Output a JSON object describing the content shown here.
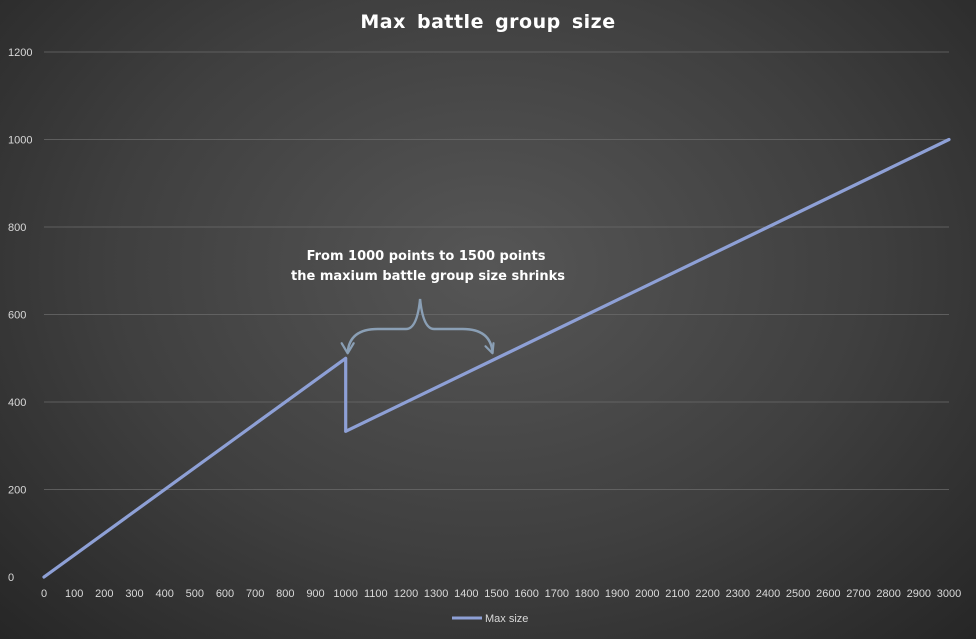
{
  "chart_data": {
    "type": "line",
    "title": "Max battle group size",
    "xlabel": "",
    "ylabel": "",
    "xlim": [
      0,
      3000
    ],
    "ylim": [
      0,
      1200
    ],
    "x_ticks": [
      0,
      100,
      200,
      300,
      400,
      500,
      600,
      700,
      800,
      900,
      1000,
      1100,
      1200,
      1300,
      1400,
      1500,
      1600,
      1700,
      1800,
      1900,
      2000,
      2100,
      2200,
      2300,
      2400,
      2500,
      2600,
      2700,
      2800,
      2900,
      3000
    ],
    "y_ticks": [
      0,
      200,
      400,
      600,
      800,
      1000,
      1200
    ],
    "grid": "horizontal",
    "legend_position": "bottom",
    "series": [
      {
        "name": "Max size",
        "color": "#8ea0d6",
        "points": [
          {
            "x": 0,
            "y": 0
          },
          {
            "x": 1000,
            "y": 500
          },
          {
            "x": 1000,
            "y": 333
          },
          {
            "x": 3000,
            "y": 1000
          }
        ]
      }
    ],
    "annotation": {
      "line1": "From 1000 points to 1500 points",
      "line2": "the maxium battle group size shrinks",
      "brace_from": {
        "x": 1000,
        "y": 500
      },
      "brace_to": {
        "x": 1500,
        "y": 500
      }
    }
  }
}
